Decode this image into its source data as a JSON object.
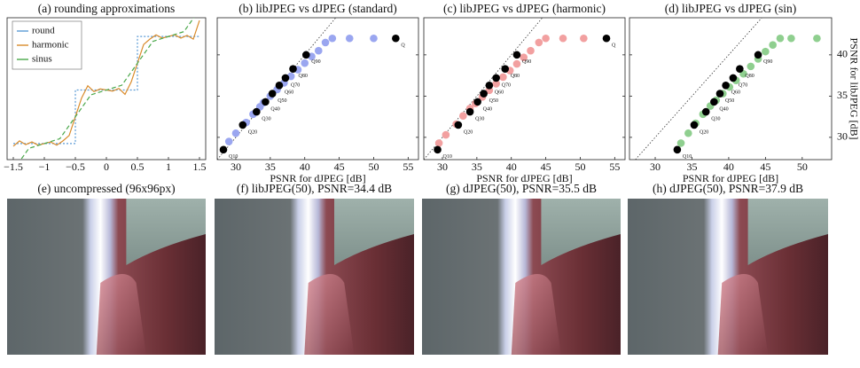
{
  "chart_data": [
    {
      "type": "line",
      "title": "(a) rounding approximations",
      "xlim": [
        -1.6,
        1.6
      ],
      "ylim": [
        -1.3,
        1.35
      ],
      "xticks": [
        {
          "value": -1.5,
          "label": "−1.5"
        },
        {
          "value": -1,
          "label": "−1"
        },
        {
          "value": -0.5,
          "label": "−0.5"
        },
        0,
        0.5,
        1,
        1.5
      ],
      "legend": "upper left",
      "series": [
        {
          "name": "round",
          "color": "#5b9bd5",
          "x": [
            -1.5,
            -0.5,
            -0.5,
            0.5,
            0.5,
            1.5
          ],
          "values": [
            -1,
            -1,
            0,
            0,
            1,
            1
          ]
        },
        {
          "name": "harmonic",
          "color": "#d98b2b",
          "x": [
            -1.5,
            -1.4,
            -1.3,
            -1.2,
            -1.1,
            -1.0,
            -0.9,
            -0.8,
            -0.7,
            -0.6,
            -0.5,
            -0.4,
            -0.3,
            -0.2,
            -0.1,
            0,
            0.1,
            0.2,
            0.3,
            0.4,
            0.5,
            0.6,
            0.7,
            0.8,
            0.9,
            1.0,
            1.1,
            1.2,
            1.3,
            1.4,
            1.5
          ],
          "values": [
            -1.05,
            -0.95,
            -1.02,
            -0.97,
            -1.03,
            -1.0,
            -0.97,
            -1.03,
            -0.95,
            -0.85,
            -0.5,
            -0.15,
            0.08,
            -0.03,
            0.02,
            0,
            -0.02,
            0.03,
            -0.08,
            0.15,
            0.5,
            0.85,
            0.95,
            1.03,
            0.97,
            1.0,
            1.03,
            0.97,
            1.02,
            0.95,
            1.3
          ]
        },
        {
          "name": "sinus",
          "color": "#4aa84a",
          "x": [
            -1.5,
            -1.25,
            -1.0,
            -0.75,
            -0.5,
            -0.25,
            0,
            0.25,
            0.5,
            0.75,
            1.0,
            1.25,
            1.5
          ],
          "values": [
            -1.5,
            -1.091,
            -1.0,
            -0.909,
            -0.5,
            -0.091,
            0,
            0.091,
            0.5,
            0.909,
            1.0,
            1.091,
            1.5
          ]
        }
      ]
    },
    {
      "type": "scatter",
      "title": "(b) libJPEG vs dJPEG (standard)",
      "x_label": "PSNR for dJPEG [dB]",
      "xlim": [
        27.3,
        56.5
      ],
      "ylim": [
        27.3,
        44.5
      ],
      "xticks": [
        30,
        35,
        40,
        45,
        50,
        55
      ],
      "yticks": [
        30,
        35,
        40
      ],
      "show_ytick_labels": false,
      "diagonal": true,
      "series": [
        {
          "color": "#9aa6f0",
          "x": [
            29,
            30,
            31.5,
            32.5,
            33.5,
            34,
            35,
            36,
            37,
            38,
            39,
            40,
            41,
            42,
            43,
            44,
            46.5,
            50
          ],
          "values": [
            29.5,
            30.5,
            31.8,
            32.8,
            33.7,
            34.2,
            35,
            35.8,
            36.6,
            37.4,
            38.2,
            39,
            39.8,
            40.5,
            41.5,
            42,
            42,
            42
          ]
        },
        {
          "color": "#000000",
          "x": [
            28.2,
            31,
            33,
            34.3,
            35.3,
            36.3,
            37.2,
            38.3,
            40.2,
            53.2
          ],
          "values": [
            28.5,
            31.5,
            33.1,
            34.3,
            35.3,
            36.3,
            37.2,
            38.3,
            40.0,
            42
          ],
          "labels": [
            "Q10",
            "Q20",
            "Q30",
            "Q40",
            "Q50",
            "Q60",
            "Q70",
            "Q80",
            "Q90",
            "Q"
          ]
        }
      ]
    },
    {
      "type": "scatter",
      "title": "(c) libJPEG vs dJPEG (harmonic)",
      "x_label": "PSNR for dJPEG [dB]",
      "xlim": [
        27.3,
        56.5
      ],
      "ylim": [
        27.3,
        44.5
      ],
      "xticks": [
        30,
        35,
        40,
        45,
        50,
        55
      ],
      "yticks": [
        30,
        35,
        40
      ],
      "show_ytick_labels": false,
      "diagonal": true,
      "series": [
        {
          "color": "#f2a0a0",
          "x": [
            29.5,
            30.5,
            32,
            33,
            34,
            34.8,
            35.8,
            36.8,
            37.8,
            38.8,
            39.8,
            40.8,
            41.8,
            42.8,
            44,
            45,
            47.5,
            50.5
          ],
          "values": [
            29.3,
            30.3,
            31.6,
            32.6,
            33.5,
            34.1,
            34.9,
            35.7,
            36.5,
            37.3,
            38.1,
            38.9,
            39.7,
            40.5,
            41.5,
            42,
            42,
            42
          ]
        },
        {
          "color": "#000000",
          "x": [
            29.3,
            32.3,
            34,
            35.1,
            36,
            36.8,
            37.8,
            39.1,
            40.8,
            53.8
          ],
          "values": [
            28.5,
            31.5,
            33.1,
            34.3,
            35.3,
            36.3,
            37.2,
            38.3,
            40.0,
            42
          ],
          "labels": [
            "Q10",
            "Q20",
            "Q30",
            "Q40",
            "Q50",
            "Q60",
            "Q70",
            "Q80",
            "Q90",
            "Q"
          ]
        }
      ]
    },
    {
      "type": "scatter",
      "title": "(d) libJPEG vs dJPEG (sin)",
      "x_label": "PSNR for dJPEG [dB]",
      "y_label": "PSNR for libJPEG [dB]",
      "xlim": [
        26.5,
        54
      ],
      "ylim": [
        27.3,
        44.5
      ],
      "xticks": [
        30,
        35,
        40,
        45,
        50
      ],
      "yticks": [
        30,
        35,
        40
      ],
      "show_ytick_labels": true,
      "diagonal": true,
      "series": [
        {
          "color": "#8fcf8f",
          "x": [
            33.5,
            34.5,
            35.5,
            36.5,
            37.5,
            38.3,
            39.2,
            40.1,
            41,
            42,
            43,
            44,
            45,
            46,
            47,
            48.5,
            52
          ],
          "values": [
            29.3,
            30.5,
            31.7,
            32.8,
            33.8,
            34.5,
            35.3,
            36.1,
            36.9,
            37.7,
            38.6,
            39.5,
            40.4,
            41.2,
            42,
            42,
            42
          ]
        },
        {
          "color": "#000000",
          "x": [
            33,
            35.3,
            36.9,
            38,
            38.8,
            39.6,
            40.6,
            41.5,
            44
          ],
          "values": [
            28.5,
            31.5,
            33.1,
            34.3,
            35.3,
            36.3,
            37.2,
            38.3,
            40.0
          ],
          "labels": [
            "Q10",
            "Q20",
            "Q30",
            "Q40",
            "Q50",
            "Q60",
            "Q70",
            "Q80",
            "Q90"
          ]
        }
      ]
    }
  ],
  "image_panels": [
    {
      "title": "(e) uncompressed (96x96px)"
    },
    {
      "title": "(f) libJPEG(50), PSNR=34.4 dB"
    },
    {
      "title": "(g) dJPEG(50), PSNR=35.5 dB"
    },
    {
      "title": "(h) dJPEG(50), PSNR=37.9 dB"
    }
  ]
}
